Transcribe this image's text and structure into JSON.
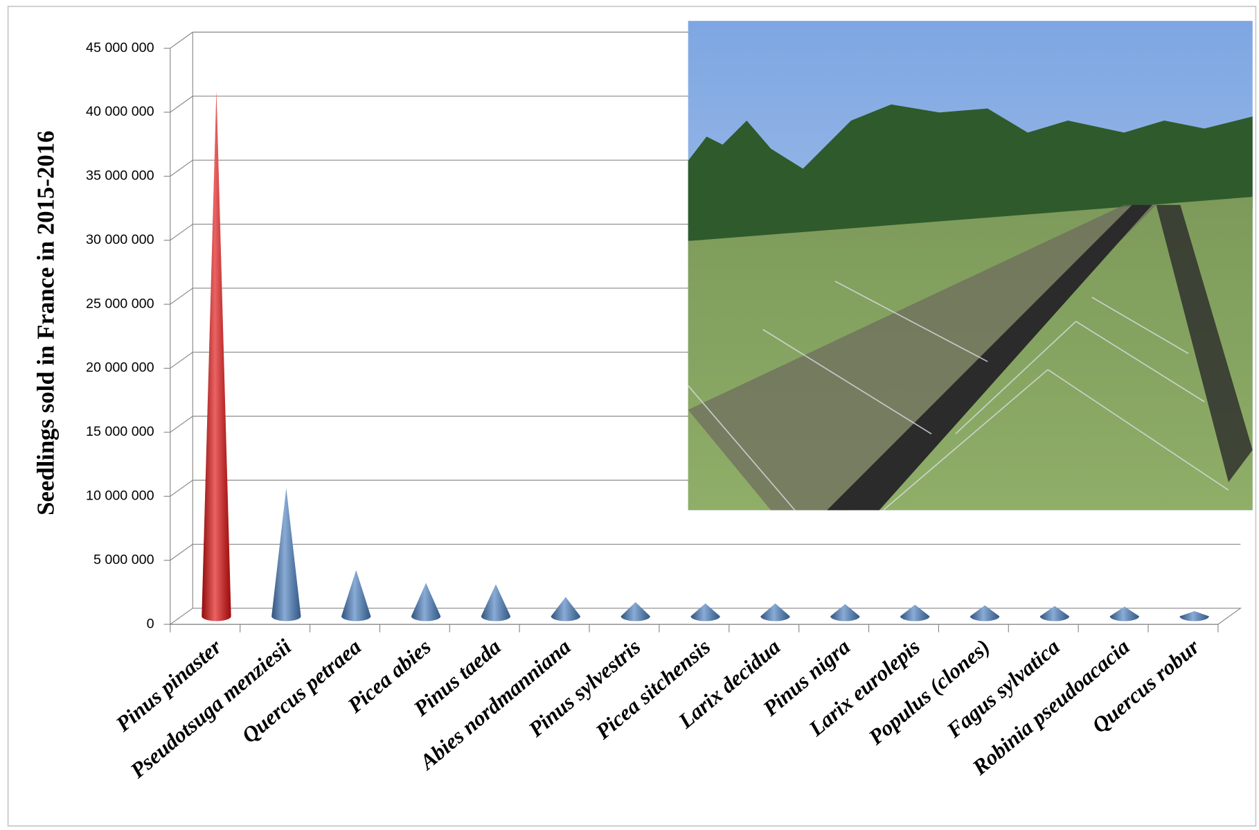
{
  "chart_data": {
    "type": "cone3d",
    "y_label": "Seedlings sold in France in 2015-2016",
    "categories": [
      "Pinus pinaster",
      "Pseudotsuga menziesii",
      "Quercus petraea",
      "Picea abies",
      "Pinus taeda",
      "Abies nordmanniana",
      "Pinus sylvestris",
      "Picea sitchensis",
      "Larix decidua",
      "Pinus nigra",
      "Larix eurolepis",
      "Populus (clones)",
      "Fagus sylvatica",
      "Robinia pseudoacacia",
      "Quercus robur"
    ],
    "values": [
      41000000,
      10000000,
      3600000,
      2600000,
      2500000,
      1500000,
      1100000,
      1000000,
      1000000,
      950000,
      900000,
      850000,
      800000,
      750000,
      400000
    ],
    "colors": [
      "#e01010",
      "#4a7fc0",
      "#4a7fc0",
      "#4a7fc0",
      "#4a7fc0",
      "#4a7fc0",
      "#4a7fc0",
      "#4a7fc0",
      "#4a7fc0",
      "#4a7fc0",
      "#4a7fc0",
      "#4a7fc0",
      "#4a7fc0",
      "#4a7fc0",
      "#4a7fc0"
    ],
    "ylim": [
      0,
      45000000
    ],
    "yticks": [
      0,
      {
        "value": 5000000,
        "label": "5 000 000"
      },
      {
        "value": 10000000,
        "label": "10 000 000"
      },
      {
        "value": 15000000,
        "label": "15 000 000"
      },
      {
        "value": 20000000,
        "label": "20 000 000"
      },
      {
        "value": 25000000,
        "label": "25 000 000"
      },
      {
        "value": 30000000,
        "label": "30 000 000"
      },
      {
        "value": 35000000,
        "label": "35 000 000"
      },
      {
        "value": 40000000,
        "label": "40 000 000"
      },
      {
        "value": 45000000,
        "label": "45 000 000"
      }
    ],
    "grid": true
  }
}
